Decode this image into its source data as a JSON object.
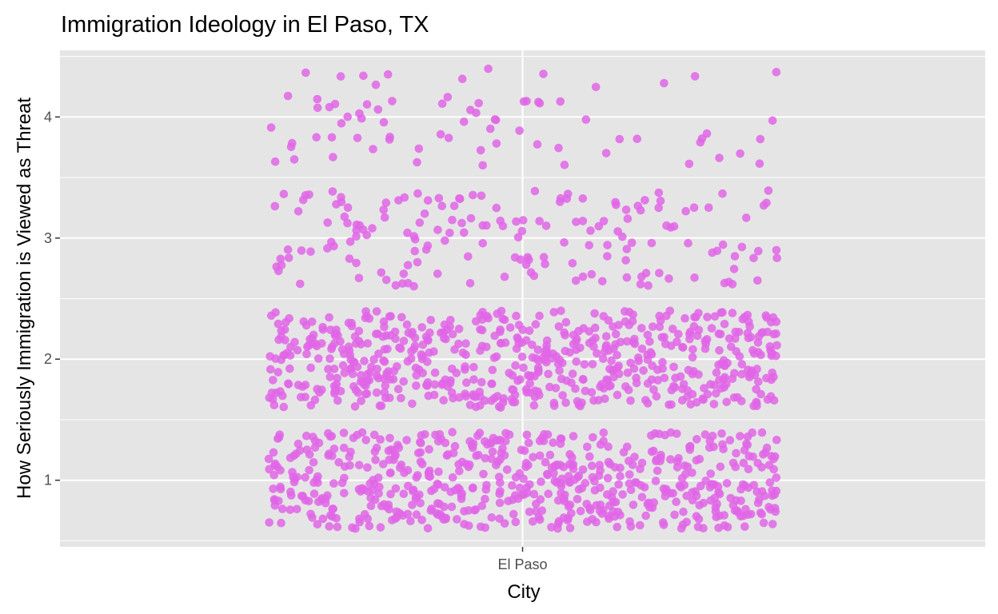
{
  "chart_data": {
    "type": "scatter",
    "title": "Immigration Ideology in El Paso, TX",
    "xlabel": "City",
    "ylabel": "How Seriously Immigration is Viewed as Threat",
    "x_categories": [
      "El Paso"
    ],
    "y_ticks": [
      1,
      2,
      3,
      4
    ],
    "ylim": [
      0.45,
      4.55
    ],
    "jitter": 0.4,
    "grid": true,
    "legend": "none",
    "point_color": "#e066e6",
    "panel_background": "#e5e5e5",
    "level_counts": [
      {
        "value": 1,
        "count": 600
      },
      {
        "value": 2,
        "count": 620
      },
      {
        "value": 3,
        "count": 170
      },
      {
        "value": 4,
        "count": 75
      }
    ]
  }
}
